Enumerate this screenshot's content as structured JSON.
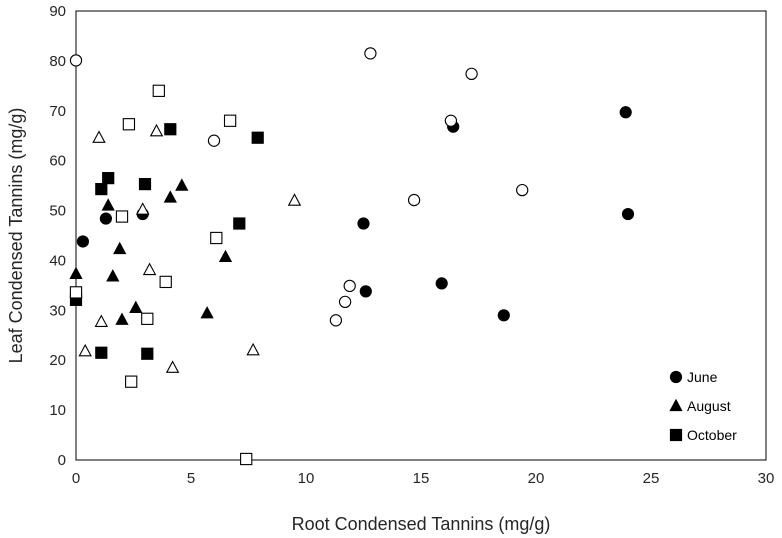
{
  "chart_data": {
    "type": "scatter",
    "title": "",
    "xlabel": "Root Condensed Tannins (mg/g)",
    "ylabel": "Leaf Condensed Tannins (mg/g)",
    "xlim": [
      0,
      30
    ],
    "ylim": [
      0,
      90
    ],
    "xticks": [
      0,
      5,
      10,
      15,
      20,
      25,
      30
    ],
    "yticks": [
      0,
      10,
      20,
      30,
      40,
      50,
      60,
      70,
      80,
      90
    ],
    "grid": false,
    "legend_position": "bottom-right",
    "series": [
      {
        "name": "June",
        "marker": "circle",
        "filled": true,
        "color": "#000000",
        "points": [
          [
            0.3,
            43.8
          ],
          [
            1.3,
            48.4
          ],
          [
            2.9,
            49.3
          ],
          [
            12.5,
            47.4
          ],
          [
            12.6,
            33.8
          ],
          [
            15.9,
            35.4
          ],
          [
            16.4,
            66.8
          ],
          [
            18.6,
            29.0
          ],
          [
            23.9,
            69.7
          ],
          [
            24.0,
            49.3
          ]
        ]
      },
      {
        "name": "August",
        "marker": "triangle",
        "filled": true,
        "color": "#000000",
        "points": [
          [
            0.0,
            37.3
          ],
          [
            1.4,
            51.0
          ],
          [
            1.6,
            36.8
          ],
          [
            1.9,
            42.3
          ],
          [
            2.0,
            28.1
          ],
          [
            2.6,
            30.5
          ],
          [
            4.1,
            52.6
          ],
          [
            4.6,
            55.0
          ],
          [
            5.7,
            29.4
          ],
          [
            6.5,
            40.7
          ]
        ]
      },
      {
        "name": "October",
        "marker": "square",
        "filled": true,
        "color": "#000000",
        "points": [
          [
            0.0,
            32.1
          ],
          [
            1.1,
            21.5
          ],
          [
            1.1,
            54.3
          ],
          [
            1.4,
            56.5
          ],
          [
            3.0,
            55.3
          ],
          [
            3.1,
            21.3
          ],
          [
            4.1,
            66.3
          ],
          [
            7.1,
            47.4
          ],
          [
            7.9,
            64.6
          ]
        ]
      },
      {
        "name": "",
        "marker": "circle",
        "filled": false,
        "color": "#000000",
        "points": [
          [
            0.0,
            80.1
          ],
          [
            6.0,
            64.0
          ],
          [
            11.3,
            28.0
          ],
          [
            11.7,
            31.7
          ],
          [
            11.9,
            34.9
          ],
          [
            12.8,
            81.5
          ],
          [
            14.7,
            52.1
          ],
          [
            16.3,
            68.0
          ],
          [
            17.2,
            77.4
          ],
          [
            19.4,
            54.1
          ]
        ]
      },
      {
        "name": "",
        "marker": "triangle",
        "filled": false,
        "color": "#000000",
        "points": [
          [
            0.4,
            21.8
          ],
          [
            1.0,
            64.6
          ],
          [
            1.1,
            27.7
          ],
          [
            2.9,
            50.2
          ],
          [
            3.2,
            38.1
          ],
          [
            3.5,
            65.9
          ],
          [
            4.2,
            18.5
          ],
          [
            7.7,
            22.0
          ],
          [
            9.5,
            52.0
          ]
        ]
      },
      {
        "name": "",
        "marker": "square",
        "filled": false,
        "color": "#000000",
        "points": [
          [
            0.0,
            33.6
          ],
          [
            2.0,
            48.8
          ],
          [
            2.3,
            67.3
          ],
          [
            2.4,
            15.7
          ],
          [
            3.1,
            28.3
          ],
          [
            3.6,
            74.0
          ],
          [
            3.9,
            35.7
          ],
          [
            6.1,
            44.5
          ],
          [
            6.7,
            68.0
          ],
          [
            7.4,
            0.2
          ]
        ]
      }
    ]
  }
}
